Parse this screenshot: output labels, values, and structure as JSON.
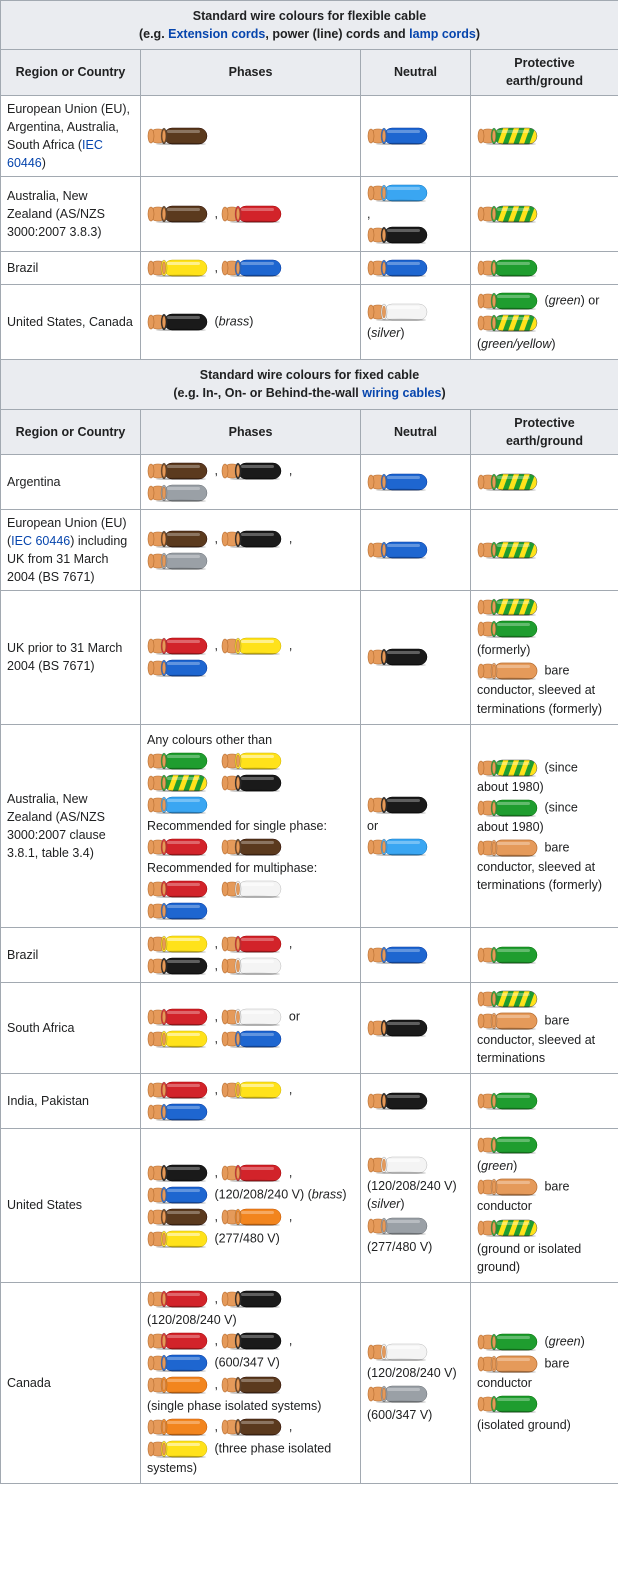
{
  "wire_svg": {
    "width": 62,
    "height": 18,
    "tip_fill": "#e59a5a",
    "tip_stroke": "#b56b2e",
    "highlight": "#ffffff",
    "shadow_opacity": 0.25
  },
  "colors": {
    "brown": "#5b3a1e",
    "black": "#1a1a1a",
    "red": "#d2232a",
    "yellow": "#ffe21a",
    "blue": "#1e66d0",
    "lightblue": "#3aa6f2",
    "green": "#1f9d2f",
    "grey": "#9aa0a6",
    "white": "#f4f4f4",
    "orange": "#f2851e",
    "bare": "#e59a5a",
    "gy_g": "#1f9d2f",
    "gy_y": "#ffe21a"
  },
  "links": {
    "extension_cords": "Extension cords",
    "lamp_cords": "lamp cords",
    "iec_60446": "IEC 60446",
    "wiring_cables": "wiring cables"
  },
  "section1": {
    "title_l1": "Standard wire colours for flexible cable",
    "title_l2a": "(e.g. ",
    "title_l2b": ", power (line) cords and ",
    "title_l2c": ")",
    "headers": [
      "Region or Country",
      "Phases",
      "Neutral",
      "Protective earth/ground"
    ],
    "rows": [
      {
        "region_parts": [
          {
            "t": "European Union (EU), Argentina, Australia, South Africa ("
          },
          {
            "link": "iec_60446"
          },
          {
            "t": ")"
          }
        ],
        "phases": [
          [
            "brown"
          ]
        ],
        "neutral": [
          [
            "blue"
          ]
        ],
        "earth": [
          [
            "gy"
          ]
        ]
      },
      {
        "region_parts": [
          {
            "t": "Australia, New Zealand (AS/NZS 3000:2007 3.8.3)"
          }
        ],
        "phases": [
          [
            "brown",
            "sep",
            "red"
          ]
        ],
        "neutral": [
          [
            "lightblue"
          ],
          [
            "comma"
          ],
          [
            "black"
          ]
        ],
        "earth": [
          [
            "gy"
          ]
        ]
      },
      {
        "region_parts": [
          {
            "t": "Brazil"
          }
        ],
        "phases": [
          [
            "yellow",
            "sep",
            "blue"
          ]
        ],
        "neutral": [
          [
            "blue"
          ]
        ],
        "earth": [
          [
            "green"
          ]
        ]
      },
      {
        "region_parts": [
          {
            "t": "United States, Canada"
          }
        ],
        "phases": [
          [
            "black",
            "text",
            " (",
            "italic",
            "brass",
            "text",
            ")"
          ]
        ],
        "neutral": [
          [
            "white"
          ],
          [
            "text",
            "(",
            "italic",
            "silver",
            "text",
            ")"
          ]
        ],
        "earth": [
          [
            "green",
            "text",
            " (",
            "italic",
            "green",
            "text",
            ") or"
          ],
          [
            "gy"
          ],
          [
            "text",
            "(",
            "italic",
            "green/yellow",
            "text",
            ")"
          ]
        ]
      }
    ]
  },
  "section2": {
    "title_l1": "Standard wire colours for fixed cable",
    "title_l2a": "(e.g. In-, On- or Behind-the-wall ",
    "title_l2b": ")",
    "headers": [
      "Region or Country",
      "Phases",
      "Neutral",
      "Protective earth/ground"
    ],
    "rows": [
      {
        "region_parts": [
          {
            "t": "Argentina"
          }
        ],
        "phases": [
          [
            "brown",
            "sep",
            "black",
            "sep"
          ],
          [
            "grey"
          ]
        ],
        "neutral": [
          [
            "blue"
          ]
        ],
        "earth": [
          [
            "gy"
          ]
        ]
      },
      {
        "region_parts": [
          {
            "t": "European Union (EU) ("
          },
          {
            "link": "iec_60446"
          },
          {
            "t": ") including UK from 31 March 2004 (BS 7671)"
          }
        ],
        "phases": [
          [
            "brown",
            "sep",
            "black",
            "sep"
          ],
          [
            "grey"
          ]
        ],
        "neutral": [
          [
            "blue"
          ]
        ],
        "earth": [
          [
            "gy"
          ]
        ]
      },
      {
        "region_parts": [
          {
            "t": "UK prior to 31 March 2004 (BS 7671)"
          }
        ],
        "phases": [
          [
            "red",
            "sep",
            "yellow",
            "sep"
          ],
          [
            "blue"
          ]
        ],
        "neutral": [
          [
            "black"
          ]
        ],
        "earth": [
          [
            "gy"
          ],
          [
            "green"
          ],
          [
            "text",
            "(formerly)"
          ],
          [
            "bare",
            "text",
            " bare conductor, sleeved at terminations (formerly)"
          ]
        ]
      },
      {
        "region_parts": [
          {
            "t": "Australia, New Zealand (AS/NZS 3000:2007 clause 3.8.1, table 3.4)"
          }
        ],
        "phases": [
          [
            "text",
            "Any colours other than"
          ],
          [
            "green",
            "gap",
            "yellow"
          ],
          [
            "gy",
            "gap",
            "black"
          ],
          [
            "lightblue"
          ],
          [
            "text",
            "Recommended for single phase:"
          ],
          [
            "red",
            "gap",
            "brown"
          ],
          [
            "text",
            "Recommended for multiphase:"
          ],
          [
            "red",
            "gap",
            "white"
          ],
          [
            "blue"
          ]
        ],
        "neutral": [
          [
            "black"
          ],
          [
            "text",
            "or"
          ],
          [
            "lightblue"
          ]
        ],
        "earth": [
          [
            "gy",
            "text",
            " (since about 1980)"
          ],
          [
            "green",
            "text",
            " (since about 1980)"
          ],
          [
            "bare",
            "text",
            " bare conductor, sleeved at terminations (formerly)"
          ]
        ]
      },
      {
        "region_parts": [
          {
            "t": "Brazil"
          }
        ],
        "phases": [
          [
            "yellow",
            "sep",
            "red",
            "sep"
          ],
          [
            "black",
            "sep",
            "white"
          ]
        ],
        "neutral": [
          [
            "blue"
          ]
        ],
        "earth": [
          [
            "green"
          ]
        ]
      },
      {
        "region_parts": [
          {
            "t": "South Africa"
          }
        ],
        "phases": [
          [
            "red",
            "sep",
            "white",
            "text",
            " or"
          ],
          [
            "yellow",
            "sep",
            "blue"
          ]
        ],
        "neutral": [
          [
            "black"
          ]
        ],
        "earth": [
          [
            "gy"
          ],
          [
            "bare",
            "text",
            " bare conductor, sleeved at terminations"
          ]
        ]
      },
      {
        "region_parts": [
          {
            "t": "India, Pakistan"
          }
        ],
        "phases": [
          [
            "red",
            "sep",
            "yellow",
            "sep"
          ],
          [
            "blue"
          ]
        ],
        "neutral": [
          [
            "black"
          ]
        ],
        "earth": [
          [
            "green"
          ]
        ]
      },
      {
        "region_parts": [
          {
            "t": "United States"
          }
        ],
        "phases": [
          [
            "black",
            "sep",
            "red",
            "sep"
          ],
          [
            "blue",
            "text",
            " (120/208/240 V) (",
            "italic",
            "brass",
            "text",
            ")"
          ],
          [
            "brown",
            "sep",
            "orange",
            "sep"
          ],
          [
            "yellow",
            "text",
            " (277/480 V)"
          ]
        ],
        "neutral": [
          [
            "white"
          ],
          [
            "text",
            "(120/208/240 V) (",
            "italic",
            "silver",
            "text",
            ")"
          ],
          [
            "grey"
          ],
          [
            "text",
            "(277/480 V)"
          ]
        ],
        "earth": [
          [
            "green"
          ],
          [
            "text",
            "(",
            "italic",
            "green",
            "text",
            ")"
          ],
          [
            "bare",
            "text",
            " bare conductor"
          ],
          [
            "gy"
          ],
          [
            "text",
            "(ground or isolated ground)"
          ]
        ]
      },
      {
        "region_parts": [
          {
            "t": "Canada"
          }
        ],
        "phases": [
          [
            "red",
            "sep",
            "black"
          ],
          [
            "text",
            "(120/208/240 V)"
          ],
          [
            "red",
            "sep",
            "black",
            "sep"
          ],
          [
            "blue",
            "text",
            " (600/347 V)"
          ],
          [
            "orange",
            "sep",
            "brown"
          ],
          [
            "text",
            "(single phase isolated systems)"
          ],
          [
            "orange",
            "sep",
            "brown",
            "sep"
          ],
          [
            "yellow",
            "text",
            " (three phase isolated systems)"
          ]
        ],
        "neutral": [
          [
            "white"
          ],
          [
            "text",
            "(120/208/240 V)"
          ],
          [
            "grey"
          ],
          [
            "text",
            "(600/347 V)"
          ]
        ],
        "earth": [
          [
            "green",
            "text",
            " (",
            "italic",
            "green",
            "text",
            ")"
          ],
          [
            "bare",
            "text",
            " bare conductor"
          ],
          [
            "green"
          ],
          [
            "text",
            "(isolated ground)"
          ]
        ]
      }
    ]
  }
}
